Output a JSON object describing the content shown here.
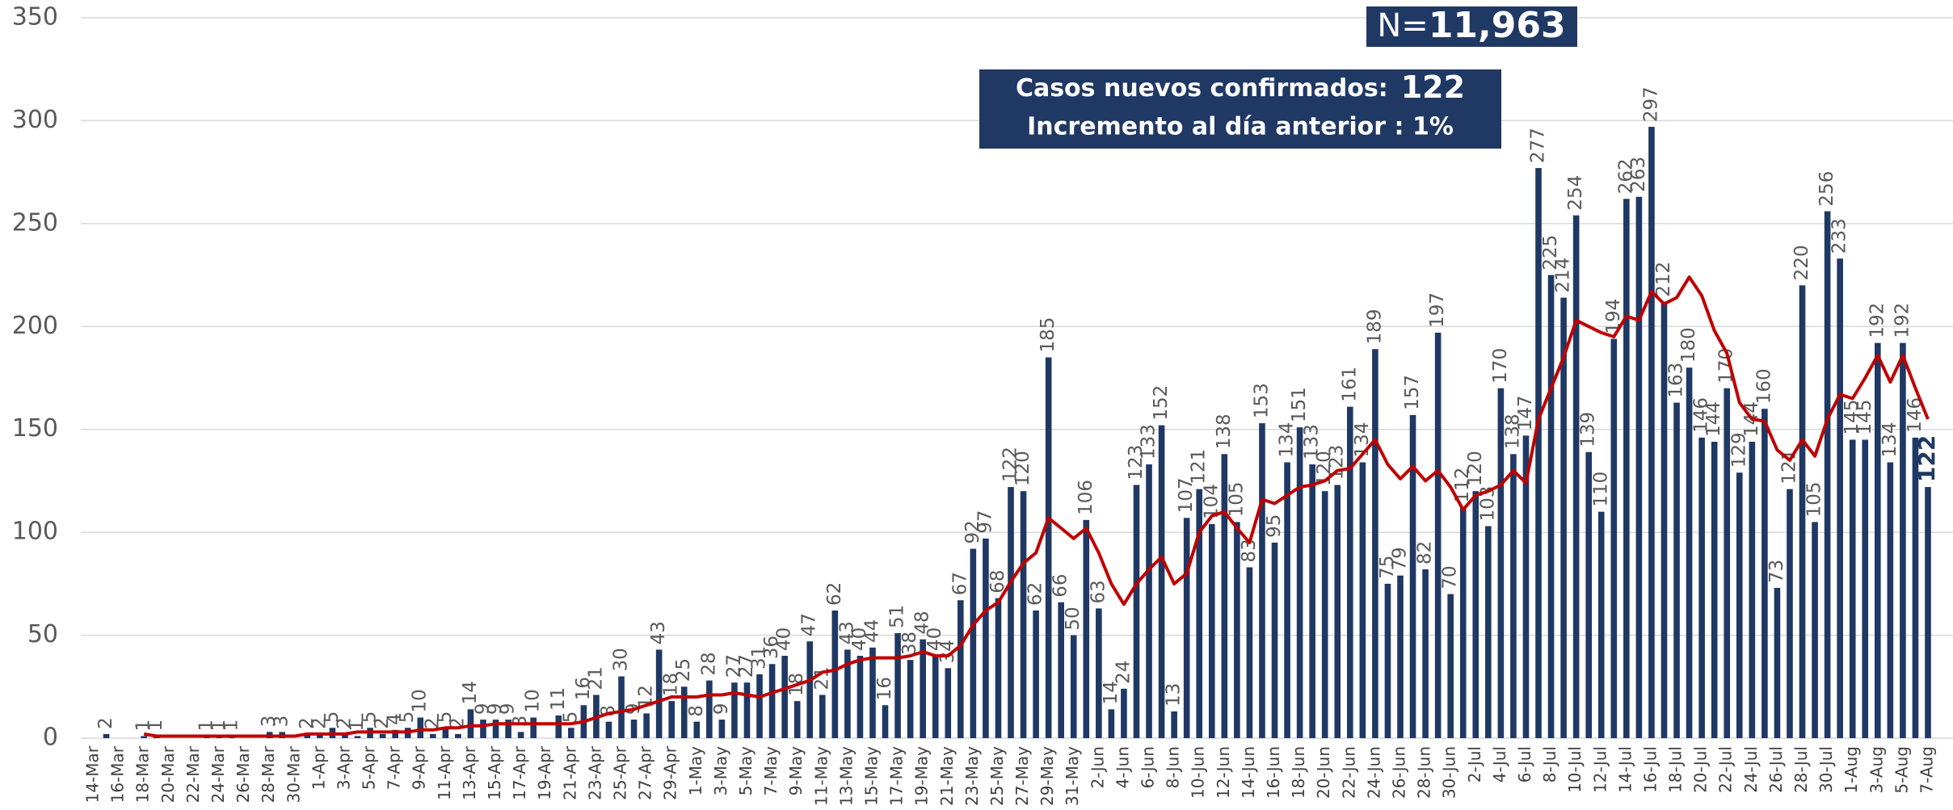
{
  "chart_data": {
    "type": "bar",
    "annotations": [
      "N=",
      "11,963",
      "Casos nuevos confirmados:",
      "122",
      "Incremento al día anterior : 1%"
    ],
    "categories": [
      "14-Mar",
      null,
      "16-Mar",
      null,
      "18-Mar",
      null,
      "20-Mar",
      null,
      "22-Mar",
      null,
      "24-Mar",
      null,
      "26-Mar",
      null,
      "28-Mar",
      null,
      "30-Mar",
      null,
      "1-Apr",
      null,
      "3-Apr",
      null,
      "5-Apr",
      null,
      "7-Apr",
      null,
      "9-Apr",
      null,
      "11-Apr",
      null,
      "13-Apr",
      null,
      "15-Apr",
      null,
      "17-Apr",
      null,
      "19-Apr",
      null,
      "21-Apr",
      null,
      "23-Apr",
      null,
      "25-Apr",
      null,
      "27-Apr",
      null,
      "29-Apr",
      null,
      "1-May",
      null,
      "3-May",
      null,
      "5-May",
      null,
      "7-May",
      null,
      "9-May",
      null,
      "11-May",
      null,
      "13-May",
      null,
      "15-May",
      null,
      "17-May",
      null,
      "19-May",
      null,
      "21-May",
      null,
      "23-May",
      null,
      "25-May",
      null,
      "27-May",
      null,
      "29-May",
      null,
      "31-May",
      null,
      "2-Jun",
      null,
      "4-Jun",
      null,
      "6-Jun",
      null,
      "8-Jun",
      null,
      "10-Jun",
      null,
      "12-Jun",
      null,
      "14-Jun",
      null,
      "16-Jun",
      null,
      "18-Jun",
      null,
      "20-Jun",
      null,
      "22-Jun",
      null,
      "24-Jun",
      null,
      "26-Jun",
      null,
      "28-Jun",
      null,
      "30-Jun",
      null,
      "2-Jul",
      null,
      "4-Jul",
      null,
      "6-Jul",
      null,
      "8-Jul",
      null,
      "10-Jul",
      null,
      "12-Jul",
      null,
      "14-Jul",
      null,
      "16-Jul",
      null,
      "18-Jul",
      null,
      "20-Jul",
      null,
      "22-Jul",
      null,
      "24-Jul",
      null,
      "26-Jul",
      null,
      "28-Jul",
      null,
      "30-Jul",
      null,
      "1-Aug",
      null,
      "3-Aug",
      null,
      "5-Aug",
      null,
      "7-Aug"
    ],
    "series": [
      {
        "type": "bar",
        "color": "#1f3864",
        "values": [
          0,
          2,
          0,
          0,
          1,
          1,
          0,
          0,
          0,
          1,
          1,
          1,
          0,
          0,
          3,
          3,
          0,
          2,
          2,
          5,
          2,
          1,
          5,
          2,
          4,
          5,
          10,
          2,
          5,
          2,
          14,
          9,
          9,
          9,
          3,
          10,
          0,
          11,
          5,
          16,
          21,
          8,
          30,
          9,
          12,
          43,
          18,
          25,
          8,
          28,
          9,
          27,
          27,
          31,
          36,
          40,
          18,
          47,
          21,
          62,
          43,
          40,
          44,
          16,
          51,
          38,
          48,
          40,
          34,
          67,
          92,
          97,
          68,
          122,
          120,
          62,
          185,
          66,
          50,
          106,
          63,
          14,
          24,
          123,
          133,
          152,
          13,
          107,
          121,
          104,
          138,
          105,
          83,
          153,
          95,
          134,
          151,
          133,
          120,
          123,
          161,
          134,
          189,
          75,
          79,
          157,
          82,
          197,
          70,
          112,
          120,
          103,
          170,
          138,
          147,
          277,
          225,
          214,
          254,
          139,
          110,
          194,
          262,
          263,
          297,
          212,
          163,
          180,
          146,
          144,
          170,
          129,
          144,
          160,
          73,
          121,
          220,
          105,
          256,
          233,
          145,
          145,
          192,
          134,
          192,
          146,
          122
        ]
      },
      {
        "type": "line",
        "color": "#c00000",
        "values": [
          null,
          null,
          null,
          null,
          2,
          1,
          1,
          1,
          1,
          1,
          1,
          1,
          1,
          1,
          1,
          1,
          1,
          2,
          2,
          2,
          2,
          3,
          3,
          3,
          3,
          3,
          4,
          4,
          5,
          5,
          6,
          6,
          7,
          7,
          7,
          7,
          7,
          7,
          7,
          8,
          10,
          12,
          13,
          14,
          16,
          18,
          20,
          20,
          20,
          21,
          21,
          22,
          21,
          20,
          22,
          24,
          26,
          28,
          32,
          33,
          36,
          38,
          39,
          39,
          39,
          40,
          42,
          40,
          40,
          45,
          55,
          62,
          66,
          76,
          85,
          90,
          107,
          102,
          97,
          102,
          90,
          75,
          65,
          75,
          82,
          88,
          75,
          80,
          100,
          108,
          110,
          102,
          95,
          116,
          114,
          118,
          122,
          123,
          125,
          130,
          131,
          138,
          145,
          133,
          126,
          132,
          125,
          130,
          122,
          111,
          118,
          120,
          123,
          130,
          124,
          155,
          170,
          185,
          203,
          200,
          197,
          195,
          205,
          203,
          217,
          211,
          214,
          224,
          215,
          198,
          187,
          163,
          155,
          154,
          140,
          135,
          145,
          137,
          155,
          167,
          165,
          175,
          186,
          173,
          186,
          170,
          155
        ]
      }
    ],
    "ylim": [
      0,
      350
    ],
    "yticks": [
      0,
      50,
      100,
      150,
      200,
      250,
      300,
      350
    ],
    "grid": true
  }
}
